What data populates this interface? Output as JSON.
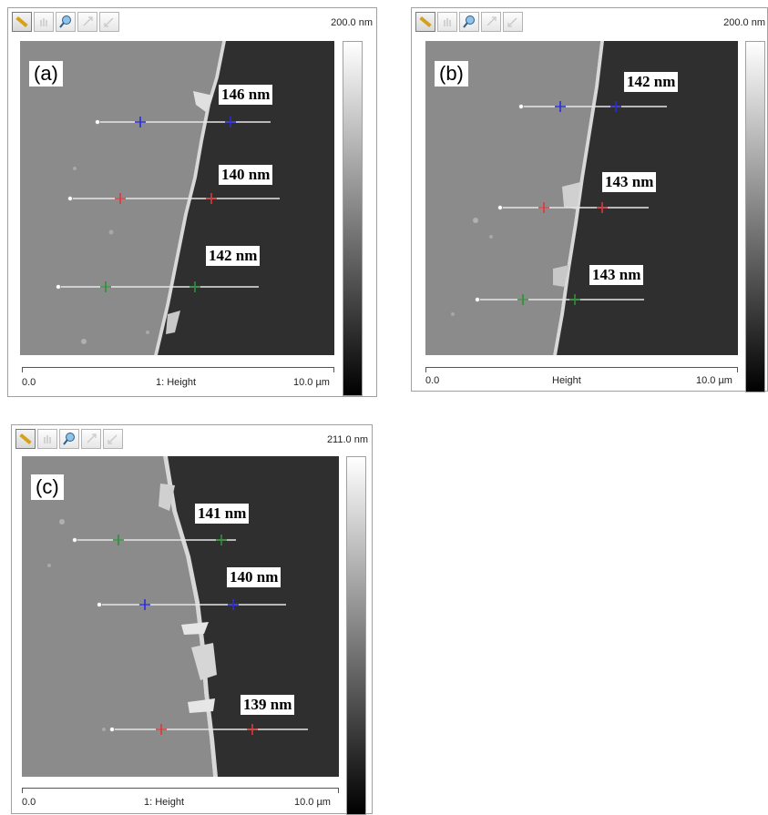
{
  "colors": {
    "blue": "#2b2bd8",
    "red": "#d93a3a",
    "green": "#2f8f3a",
    "line": "#e6e6e6"
  },
  "toolbar_icons": [
    "ruler-icon",
    "pan-icon",
    "zoom-icon",
    "zoom-in-icon",
    "zoom-out-icon"
  ],
  "panels": [
    {
      "id": "a",
      "letter": "(a)",
      "z_scale": "200.0 nm",
      "axis_start": "0.0",
      "axis_title": "1: Height",
      "axis_end": "10.0 µm",
      "measurements": [
        "146 nm",
        "140 nm",
        "142 nm"
      ]
    },
    {
      "id": "b",
      "letter": "(b)",
      "z_scale": "200.0 nm",
      "axis_start": "0.0",
      "axis_title": "Height",
      "axis_end": "10.0 µm",
      "measurements": [
        "142 nm",
        "143 nm",
        "143 nm"
      ]
    },
    {
      "id": "c",
      "letter": "(c)",
      "z_scale": "211.0 nm",
      "axis_start": "0.0",
      "axis_title": "1: Height",
      "axis_end": "10.0 µm",
      "measurements": [
        "141 nm",
        "140 nm",
        "139 nm"
      ]
    }
  ]
}
